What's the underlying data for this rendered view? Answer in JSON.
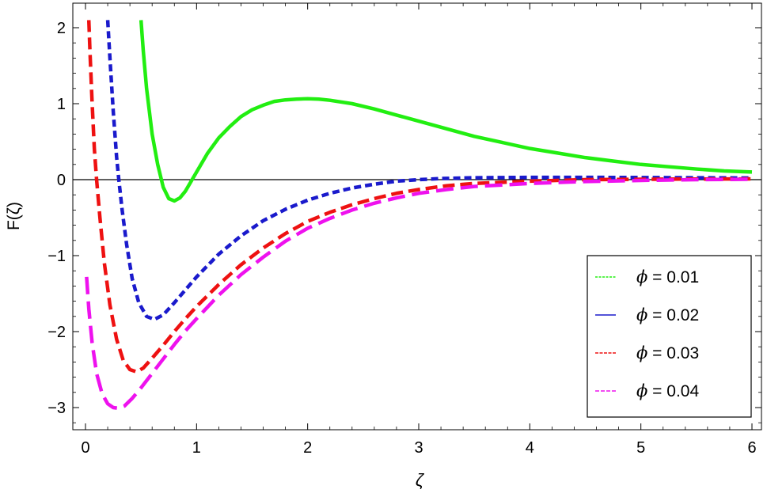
{
  "chart_data": {
    "type": "line",
    "xlabel": "ζ",
    "ylabel": "F(ζ)",
    "xlim": [
      0,
      6
    ],
    "ylim": [
      -3.3,
      2.15
    ],
    "x_ticks": [
      {
        "value": 0,
        "label": "0"
      },
      {
        "value": 1,
        "label": "1"
      },
      {
        "value": 2,
        "label": "2"
      },
      {
        "value": 3,
        "label": "3"
      },
      {
        "value": 4,
        "label": "4"
      },
      {
        "value": 5,
        "label": "5"
      },
      {
        "value": 6,
        "label": "6"
      }
    ],
    "y_ticks": [
      {
        "value": 2,
        "label": "2"
      },
      {
        "value": 1,
        "label": "1"
      },
      {
        "value": 0,
        "label": "0"
      },
      {
        "value": -1,
        "label": "−1"
      },
      {
        "value": -2,
        "label": "−2"
      },
      {
        "value": -3,
        "label": "−3"
      }
    ],
    "zero_line": true,
    "grid": false,
    "legend_position": "bottom-right",
    "series": [
      {
        "name": "ϕ = 0.01",
        "symbol": "ϕ",
        "value_text": " = 0.01",
        "color": "#22ee11",
        "dash": "solid",
        "points": [
          [
            0.5,
            2.1
          ],
          [
            0.52,
            1.7
          ],
          [
            0.55,
            1.2
          ],
          [
            0.6,
            0.6
          ],
          [
            0.65,
            0.2
          ],
          [
            0.7,
            -0.1
          ],
          [
            0.75,
            -0.25
          ],
          [
            0.8,
            -0.28
          ],
          [
            0.85,
            -0.24
          ],
          [
            0.9,
            -0.15
          ],
          [
            1.0,
            0.1
          ],
          [
            1.1,
            0.35
          ],
          [
            1.2,
            0.55
          ],
          [
            1.3,
            0.7
          ],
          [
            1.4,
            0.83
          ],
          [
            1.5,
            0.92
          ],
          [
            1.6,
            0.98
          ],
          [
            1.7,
            1.03
          ],
          [
            1.8,
            1.05
          ],
          [
            1.9,
            1.06
          ],
          [
            2.0,
            1.065
          ],
          [
            2.1,
            1.06
          ],
          [
            2.2,
            1.045
          ],
          [
            2.4,
            1.0
          ],
          [
            2.6,
            0.93
          ],
          [
            2.8,
            0.85
          ],
          [
            3.0,
            0.77
          ],
          [
            3.25,
            0.67
          ],
          [
            3.5,
            0.57
          ],
          [
            3.75,
            0.49
          ],
          [
            4.0,
            0.41
          ],
          [
            4.25,
            0.35
          ],
          [
            4.5,
            0.29
          ],
          [
            4.75,
            0.245
          ],
          [
            5.0,
            0.2
          ],
          [
            5.25,
            0.17
          ],
          [
            5.5,
            0.14
          ],
          [
            5.75,
            0.115
          ],
          [
            6.0,
            0.1
          ]
        ]
      },
      {
        "name": "ϕ = 0.02",
        "symbol": "ϕ",
        "value_text": " = 0.02",
        "color": "#1a1acc",
        "dash": "dash-short",
        "points": [
          [
            0.2,
            2.1
          ],
          [
            0.22,
            1.6
          ],
          [
            0.25,
            0.9
          ],
          [
            0.28,
            0.3
          ],
          [
            0.3,
            0.0
          ],
          [
            0.33,
            -0.4
          ],
          [
            0.37,
            -0.85
          ],
          [
            0.42,
            -1.3
          ],
          [
            0.48,
            -1.62
          ],
          [
            0.55,
            -1.8
          ],
          [
            0.62,
            -1.84
          ],
          [
            0.7,
            -1.78
          ],
          [
            0.8,
            -1.62
          ],
          [
            0.9,
            -1.45
          ],
          [
            1.0,
            -1.28
          ],
          [
            1.2,
            -0.98
          ],
          [
            1.4,
            -0.74
          ],
          [
            1.6,
            -0.54
          ],
          [
            1.8,
            -0.39
          ],
          [
            2.0,
            -0.27
          ],
          [
            2.2,
            -0.18
          ],
          [
            2.4,
            -0.11
          ],
          [
            2.6,
            -0.06
          ],
          [
            2.8,
            -0.02
          ],
          [
            3.0,
            0.0
          ],
          [
            3.2,
            0.015
          ],
          [
            3.5,
            0.025
          ],
          [
            4.0,
            0.03
          ],
          [
            4.5,
            0.03
          ],
          [
            5.0,
            0.028
          ],
          [
            5.5,
            0.025
          ],
          [
            6.0,
            0.022
          ]
        ]
      },
      {
        "name": "ϕ = 0.03",
        "symbol": "ϕ",
        "value_text": " = 0.03",
        "color": "#ee1111",
        "dash": "dash-medium",
        "points": [
          [
            0.03,
            2.1
          ],
          [
            0.04,
            1.7
          ],
          [
            0.06,
            1.0
          ],
          [
            0.08,
            0.4
          ],
          [
            0.1,
            0.0
          ],
          [
            0.13,
            -0.5
          ],
          [
            0.17,
            -1.1
          ],
          [
            0.22,
            -1.65
          ],
          [
            0.28,
            -2.1
          ],
          [
            0.34,
            -2.38
          ],
          [
            0.4,
            -2.5
          ],
          [
            0.46,
            -2.53
          ],
          [
            0.52,
            -2.48
          ],
          [
            0.6,
            -2.35
          ],
          [
            0.7,
            -2.18
          ],
          [
            0.8,
            -2.0
          ],
          [
            0.9,
            -1.83
          ],
          [
            1.0,
            -1.67
          ],
          [
            1.2,
            -1.38
          ],
          [
            1.4,
            -1.12
          ],
          [
            1.6,
            -0.9
          ],
          [
            1.8,
            -0.71
          ],
          [
            2.0,
            -0.55
          ],
          [
            2.2,
            -0.43
          ],
          [
            2.4,
            -0.33
          ],
          [
            2.6,
            -0.25
          ],
          [
            2.8,
            -0.18
          ],
          [
            3.0,
            -0.13
          ],
          [
            3.25,
            -0.08
          ],
          [
            3.5,
            -0.05
          ],
          [
            4.0,
            -0.02
          ],
          [
            4.5,
            0.0
          ],
          [
            5.0,
            0.005
          ],
          [
            5.5,
            0.008
          ],
          [
            6.0,
            0.01
          ]
        ]
      },
      {
        "name": "ϕ = 0.04",
        "symbol": "ϕ",
        "value_text": " = 0.04",
        "color": "#ee11ee",
        "dash": "dash-long",
        "points": [
          [
            0.01,
            -1.28
          ],
          [
            0.03,
            -1.7
          ],
          [
            0.06,
            -2.15
          ],
          [
            0.1,
            -2.55
          ],
          [
            0.15,
            -2.82
          ],
          [
            0.2,
            -2.95
          ],
          [
            0.25,
            -3.0
          ],
          [
            0.3,
            -3.01
          ],
          [
            0.35,
            -2.98
          ],
          [
            0.42,
            -2.88
          ],
          [
            0.5,
            -2.74
          ],
          [
            0.6,
            -2.55
          ],
          [
            0.7,
            -2.36
          ],
          [
            0.8,
            -2.17
          ],
          [
            0.9,
            -1.99
          ],
          [
            1.0,
            -1.83
          ],
          [
            1.2,
            -1.52
          ],
          [
            1.4,
            -1.25
          ],
          [
            1.6,
            -1.02
          ],
          [
            1.8,
            -0.81
          ],
          [
            2.0,
            -0.64
          ],
          [
            2.2,
            -0.51
          ],
          [
            2.4,
            -0.4
          ],
          [
            2.6,
            -0.31
          ],
          [
            2.8,
            -0.24
          ],
          [
            3.0,
            -0.18
          ],
          [
            3.25,
            -0.13
          ],
          [
            3.5,
            -0.09
          ],
          [
            4.0,
            -0.05
          ],
          [
            4.5,
            -0.025
          ],
          [
            5.0,
            -0.01
          ],
          [
            5.5,
            0.0
          ],
          [
            6.0,
            0.005
          ]
        ]
      }
    ]
  }
}
